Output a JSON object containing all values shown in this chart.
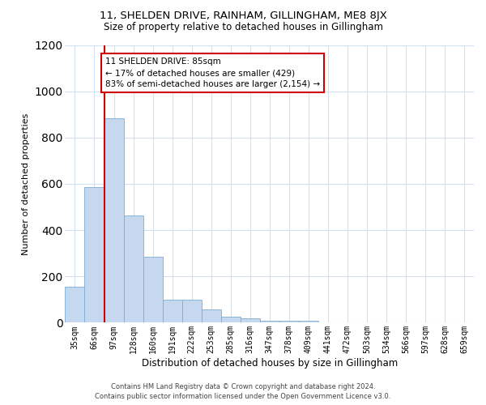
{
  "title": "11, SHELDEN DRIVE, RAINHAM, GILLINGHAM, ME8 8JX",
  "subtitle": "Size of property relative to detached houses in Gillingham",
  "xlabel": "Distribution of detached houses by size in Gillingham",
  "ylabel": "Number of detached properties",
  "categories": [
    "35sqm",
    "66sqm",
    "97sqm",
    "128sqm",
    "160sqm",
    "191sqm",
    "222sqm",
    "253sqm",
    "285sqm",
    "316sqm",
    "347sqm",
    "378sqm",
    "409sqm",
    "441sqm",
    "472sqm",
    "503sqm",
    "534sqm",
    "566sqm",
    "597sqm",
    "628sqm",
    "659sqm"
  ],
  "values": [
    155,
    585,
    885,
    465,
    285,
    100,
    100,
    58,
    25,
    18,
    10,
    8,
    10,
    0,
    0,
    0,
    0,
    0,
    0,
    0,
    0
  ],
  "bar_color": "#c5d8f0",
  "bar_edge_color": "#7aadd4",
  "vline_x_index": 1.5,
  "vline_color": "#cc0000",
  "annotation_text": "11 SHELDEN DRIVE: 85sqm\n← 17% of detached houses are smaller (429)\n83% of semi-detached houses are larger (2,154) →",
  "annotation_box_color": "#ffffff",
  "annotation_box_edge_color": "#cc0000",
  "ylim": [
    0,
    1200
  ],
  "yticks": [
    0,
    200,
    400,
    600,
    800,
    1000,
    1200
  ],
  "footer_line1": "Contains HM Land Registry data © Crown copyright and database right 2024.",
  "footer_line2": "Contains public sector information licensed under the Open Government Licence v3.0.",
  "background_color": "#ffffff",
  "grid_color": "#d4dff0",
  "title_fontsize": 9.5,
  "subtitle_fontsize": 8.5,
  "ylabel_fontsize": 8,
  "xlabel_fontsize": 8.5,
  "tick_fontsize": 7,
  "footer_fontsize": 6,
  "ann_fontsize": 7.5
}
